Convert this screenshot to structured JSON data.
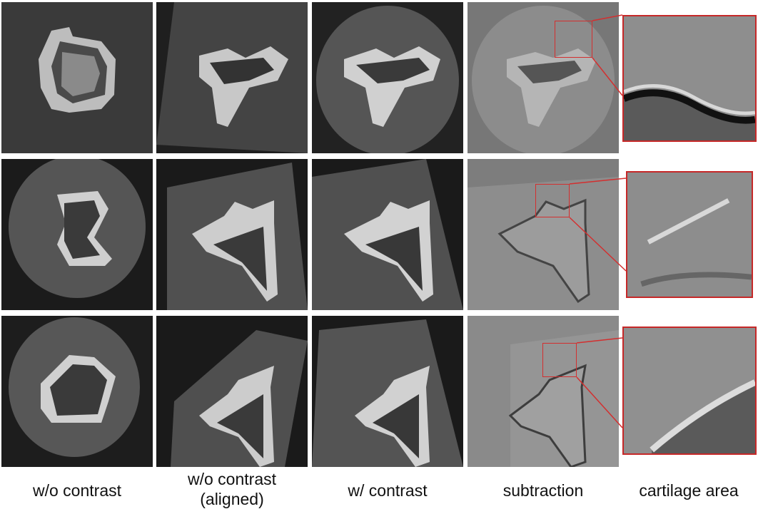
{
  "figure": {
    "columns": [
      {
        "label": "w/o contrast"
      },
      {
        "label": "w/o contrast\n(aligned)"
      },
      {
        "label": "w/ contrast"
      },
      {
        "label": "subtraction"
      },
      {
        "label": "cartilage area"
      }
    ],
    "rows": [
      {
        "name": "row-1"
      },
      {
        "name": "row-2"
      },
      {
        "name": "row-3"
      }
    ],
    "colors": {
      "highlight": "#d32f2f",
      "background": "#ffffff"
    }
  }
}
